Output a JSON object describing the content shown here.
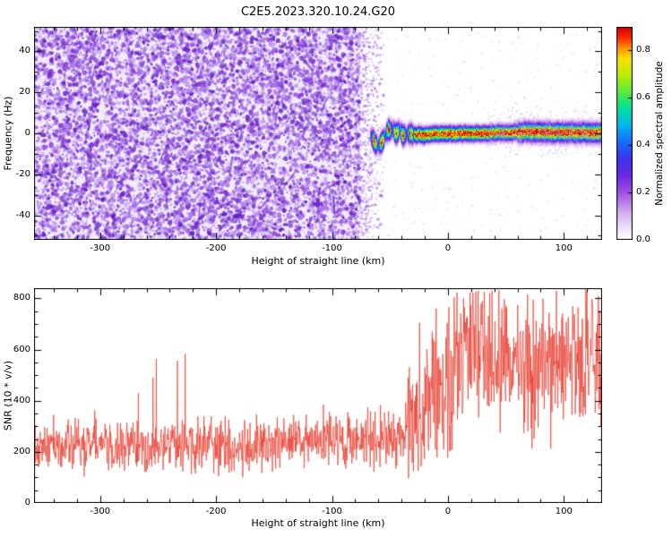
{
  "title": "C2E5.2023.320.10.24.G20",
  "chart_data": [
    {
      "type": "heatmap",
      "title": "C2E5.2023.320.10.24.G20",
      "xlabel": "Height of straight line (km)",
      "ylabel": "Frequency (Hz)",
      "xlim": [
        -357,
        133
      ],
      "ylim": [
        -52,
        52
      ],
      "xticks": [
        -300,
        -200,
        -100,
        0,
        100
      ],
      "yticks": [
        -40,
        -20,
        0,
        20,
        40
      ],
      "x_minor_step": 20,
      "y_minor_step": 10,
      "colorbar": {
        "label": "Normalized spectral amplitude",
        "ticks": [
          0,
          0.2,
          0.4,
          0.6,
          0.8
        ],
        "vmin": 0,
        "vmax": 0.9
      },
      "noise_region": {
        "x_end": -75,
        "fade_end": -55,
        "density": 9000,
        "description": "broadband purple speckle noise filling all frequencies at heights below about -75 km"
      },
      "signal": {
        "x_start": -67,
        "blob_x_end": -30,
        "core_value": 0.9,
        "halo_sigma_hz": 2.4,
        "description": "narrow spectral line near 0 Hz from about -65 km to 130 km; blobby green/yellow segments from -65 to -30 km, continuous red core with green/blue/purple halo beyond -20 km",
        "path": [
          [
            -67,
            -1
          ],
          [
            -63,
            -5
          ],
          [
            -60,
            -6
          ],
          [
            -56,
            -3
          ],
          [
            -52,
            2
          ],
          [
            -48,
            2
          ],
          [
            -45,
            0
          ],
          [
            -42,
            2
          ],
          [
            -39,
            -1
          ],
          [
            -35,
            0
          ],
          [
            -30,
            -0.5
          ],
          [
            -20,
            -0.5
          ],
          [
            -10,
            0
          ],
          [
            20,
            0
          ],
          [
            50,
            0.5
          ],
          [
            70,
            1
          ],
          [
            90,
            0.5
          ],
          [
            133,
            0.5
          ]
        ]
      },
      "colormap_stops": [
        [
          0.0,
          255,
          255,
          255
        ],
        [
          0.04,
          244,
          234,
          252
        ],
        [
          0.12,
          214,
          178,
          240
        ],
        [
          0.22,
          160,
          80,
          225
        ],
        [
          0.3,
          110,
          40,
          225
        ],
        [
          0.38,
          60,
          50,
          240
        ],
        [
          0.46,
          20,
          110,
          255
        ],
        [
          0.54,
          0,
          185,
          235
        ],
        [
          0.62,
          0,
          225,
          150
        ],
        [
          0.7,
          95,
          235,
          55
        ],
        [
          0.78,
          195,
          235,
          0
        ],
        [
          0.85,
          248,
          225,
          0
        ],
        [
          0.9,
          255,
          150,
          0
        ],
        [
          0.95,
          255,
          40,
          0
        ],
        [
          1.0,
          208,
          0,
          0
        ]
      ]
    },
    {
      "type": "line",
      "xlabel": "Height of straight line (km)",
      "ylabel": "SNR (10 * v/v)",
      "xlim": [
        -357,
        133
      ],
      "ylim": [
        0,
        840
      ],
      "xticks": [
        -300,
        -200,
        -100,
        0,
        100
      ],
      "yticks": [
        0,
        200,
        400,
        600,
        800
      ],
      "x_minor_step": 20,
      "y_minor_step": 50,
      "series_color": "#e8392b",
      "description": "noisy SNR trace: ~230 on the left half, transition spikes near -30 km, rising to a broad noisy band around 550-600 (peaks to ~830) on the right",
      "segments": [
        {
          "x0": -357,
          "x1": -260,
          "mean": 228,
          "spread": 58,
          "spike_prob": 0.006,
          "spike_max": 470,
          "min": 70
        },
        {
          "x0": -260,
          "x1": -150,
          "mean": 232,
          "spread": 62,
          "spike_prob": 0.007,
          "spike_max": 600,
          "min": 70
        },
        {
          "x0": -150,
          "x1": -60,
          "mean": 248,
          "spread": 60,
          "spike_prob": 0.006,
          "spike_max": 520,
          "min": 70
        },
        {
          "x0": -60,
          "x1": -35,
          "mean": 268,
          "spread": 70,
          "spike_prob": 0.012,
          "spike_max": 560,
          "min": 60
        },
        {
          "x0": -35,
          "x1": -20,
          "mean": 310,
          "spread": 130,
          "spike_prob": 0.045,
          "spike_max": 800,
          "min": 45
        },
        {
          "x0": -20,
          "x1": 5,
          "mean": 430,
          "spread": 175,
          "spike_prob": 0.02,
          "spike_max": 770,
          "min": 80
        },
        {
          "x0": 5,
          "x1": 60,
          "mean": 585,
          "spread": 155,
          "spike_prob": 0.02,
          "spike_max": 835,
          "min": 150
        },
        {
          "x0": 60,
          "x1": 133,
          "mean": 560,
          "spread": 150,
          "spike_prob": 0.015,
          "spike_max": 810,
          "min": 140
        }
      ]
    }
  ]
}
